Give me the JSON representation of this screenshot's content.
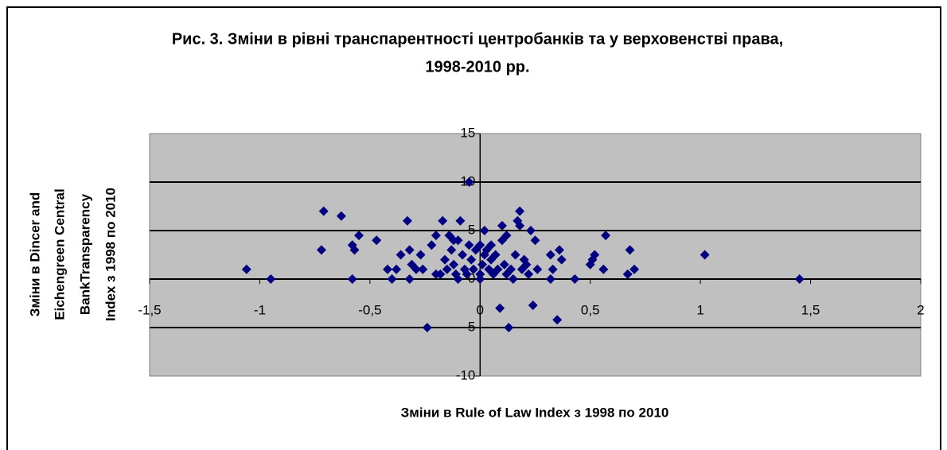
{
  "chart_data": {
    "type": "scatter",
    "title": [
      "Рис. 3. Зміни в рівні транспарентності центробанків та у верховенстві права,",
      "1998-2010 рр."
    ],
    "x_label": "Зміни в Rule of Law Index з 1998 по 2010",
    "y_label": [
      "Зміни в Dincer and",
      "Eichengreen Central",
      "BankTransparency",
      "Index з 1998 по 2010"
    ],
    "xlim": [
      -1.5,
      2
    ],
    "ylim": [
      -10,
      15
    ],
    "xticks": [
      {
        "value": -1.5,
        "label": "-1,5"
      },
      -1,
      {
        "value": -0.5,
        "label": "-0,5"
      },
      0,
      {
        "value": 0.5,
        "label": "0,5"
      },
      1,
      {
        "value": 1.5,
        "label": "1,5"
      },
      2
    ],
    "yticks": [
      -10,
      -5,
      0,
      5,
      10,
      15
    ],
    "grid": true,
    "series": [
      {
        "color": "#000080",
        "x": [
          -1.06,
          -0.95,
          -0.71,
          -0.72,
          -0.63,
          -0.58,
          -0.57,
          -0.55,
          -0.58,
          -0.47,
          -0.42,
          -0.4,
          -0.38,
          -0.36,
          -0.33,
          -0.32,
          -0.31,
          -0.32,
          -0.29,
          -0.27,
          -0.26,
          -0.24,
          -0.22,
          -0.2,
          -0.2,
          -0.18,
          -0.17,
          -0.16,
          -0.15,
          -0.14,
          -0.13,
          -0.12,
          -0.12,
          -0.11,
          -0.1,
          -0.1,
          -0.09,
          -0.08,
          -0.07,
          -0.06,
          -0.05,
          -0.05,
          -0.04,
          -0.03,
          -0.02,
          0.0,
          0.0,
          0.0,
          0.01,
          0.02,
          0.02,
          0.03,
          0.04,
          0.05,
          0.05,
          0.06,
          0.07,
          0.08,
          0.09,
          0.1,
          0.1,
          0.11,
          0.12,
          0.12,
          0.13,
          0.14,
          0.15,
          0.16,
          0.17,
          0.18,
          0.18,
          0.19,
          0.2,
          0.21,
          0.22,
          0.23,
          0.24,
          0.25,
          0.26,
          0.32,
          0.32,
          0.33,
          0.35,
          0.36,
          0.37,
          0.43,
          0.5,
          0.51,
          0.52,
          0.56,
          0.57,
          0.67,
          0.68,
          0.7,
          1.02,
          1.45
        ],
        "values": [
          1,
          0,
          7,
          3,
          6.5,
          3.5,
          3,
          4.5,
          0,
          4,
          1,
          0,
          1,
          2.5,
          6,
          3,
          1.5,
          0,
          1,
          2.5,
          1,
          -5,
          3.5,
          4.5,
          0.5,
          0.5,
          6,
          2,
          1,
          4.5,
          3,
          4,
          1.5,
          0.5,
          0,
          4,
          6,
          2.5,
          1,
          0.5,
          10,
          3.5,
          2,
          1,
          3,
          3.5,
          0.5,
          0,
          1.5,
          5,
          2.5,
          3,
          1,
          3.5,
          2,
          0.5,
          2.5,
          1,
          -3,
          5.5,
          4,
          1.5,
          4.5,
          0.5,
          -5,
          1,
          0,
          2.5,
          6,
          7,
          5.5,
          1,
          2,
          1.5,
          0.5,
          5,
          -2.7,
          4,
          1,
          2.5,
          0,
          1,
          -4.2,
          3,
          2,
          0,
          1.5,
          2,
          2.5,
          1,
          4.5,
          0.5,
          3,
          1,
          2.5,
          0
        ]
      }
    ]
  }
}
